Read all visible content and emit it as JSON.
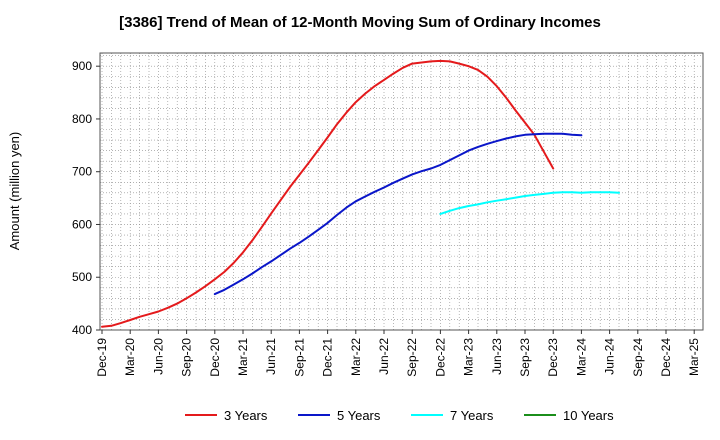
{
  "chart_data": {
    "type": "line",
    "title": "[3386]  Trend of Mean of 12-Month Moving Sum of Ordinary Incomes",
    "xlabel": "",
    "ylabel": "Amount (million yen)",
    "ylim": [
      400,
      925
    ],
    "yticks": [
      400,
      500,
      600,
      700,
      800,
      900
    ],
    "ytick_labels": [
      "400",
      "500",
      "600",
      "700",
      "800",
      "900"
    ],
    "x_start": "Dec-19",
    "x_end": "Mar-25",
    "x_tick_labels": [
      "Dec-19",
      "Mar-20",
      "Jun-20",
      "Sep-20",
      "Dec-20",
      "Mar-21",
      "Jun-21",
      "Sep-21",
      "Dec-21",
      "Mar-22",
      "Jun-22",
      "Sep-22",
      "Dec-22",
      "Mar-23",
      "Jun-23",
      "Sep-23",
      "Dec-23",
      "Mar-24",
      "Jun-24",
      "Sep-24",
      "Dec-24",
      "Mar-25"
    ],
    "grid": true,
    "legend_position": "bottom",
    "series": [
      {
        "name": "3 Years",
        "color": "#e41a1c",
        "start_index": 0,
        "values": [
          406,
          408,
          413,
          419,
          425,
          430,
          435,
          442,
          450,
          460,
          471,
          483,
          496,
          510,
          527,
          547,
          570,
          595,
          621,
          646,
          671,
          694,
          717,
          741,
          765,
          790,
          812,
          832,
          848,
          862,
          874,
          886,
          897,
          905,
          907,
          909,
          910,
          909,
          905,
          900,
          893,
          880,
          862,
          840,
          816,
          793,
          770,
          738,
          706
        ]
      },
      {
        "name": "5 Years",
        "color": "#0a16c9",
        "start_index": 12,
        "values": [
          468,
          476,
          486,
          496,
          507,
          519,
          530,
          542,
          554,
          565,
          577,
          590,
          603,
          618,
          632,
          644,
          653,
          662,
          670,
          679,
          687,
          695,
          701,
          706,
          713,
          722,
          731,
          740,
          747,
          753,
          758,
          763,
          767,
          770,
          771,
          772,
          772,
          772,
          770,
          769
        ]
      },
      {
        "name": "7 Years",
        "color": "#00ffff",
        "start_index": 36,
        "values": [
          620,
          626,
          631,
          635,
          638,
          642,
          645,
          648,
          651,
          654,
          656,
          658,
          660,
          661,
          661,
          660,
          661,
          661,
          661,
          660
        ]
      },
      {
        "name": "10 Years",
        "color": "#1b8e1b",
        "start_index": 0,
        "values": []
      }
    ]
  }
}
